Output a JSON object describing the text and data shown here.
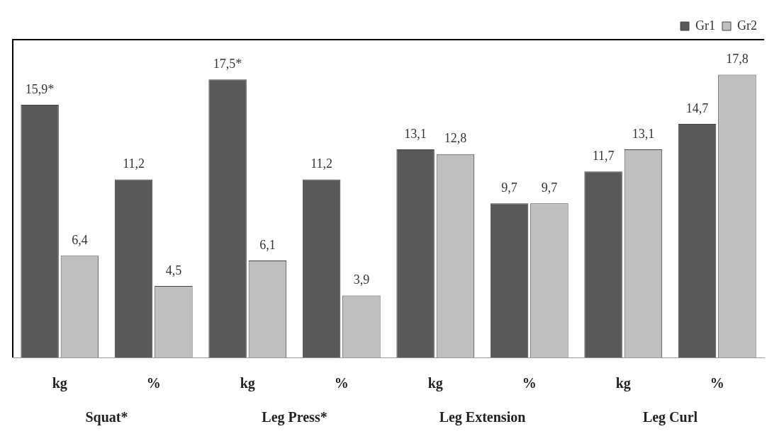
{
  "chart_data": {
    "type": "bar",
    "categories": [
      "kg",
      "%",
      "kg",
      "%",
      "kg",
      "%",
      "kg",
      "%"
    ],
    "series": [
      {
        "name": "Gr1",
        "color": "#595959",
        "values": [
          15.9,
          11.2,
          17.5,
          11.2,
          13.1,
          9.7,
          11.7,
          14.7
        ],
        "value_labels": [
          "15,9*",
          "11,2",
          "17,5*",
          "11,2",
          "13,1",
          "9,7",
          "11,7",
          "14,7"
        ]
      },
      {
        "name": "Gr2",
        "color": "#bfbfbf",
        "values": [
          6.4,
          4.5,
          6.1,
          3.9,
          12.8,
          9.7,
          13.1,
          17.8
        ],
        "value_labels": [
          "6,4",
          "4,5",
          "6,1",
          "3,9",
          "12,8",
          "9,7",
          "13,1",
          "17,8"
        ]
      }
    ],
    "annotations": [
      "Squat*",
      "Leg Press*",
      "Leg Extension",
      "Leg Curl"
    ],
    "legend": "top right",
    "grid": false
  }
}
